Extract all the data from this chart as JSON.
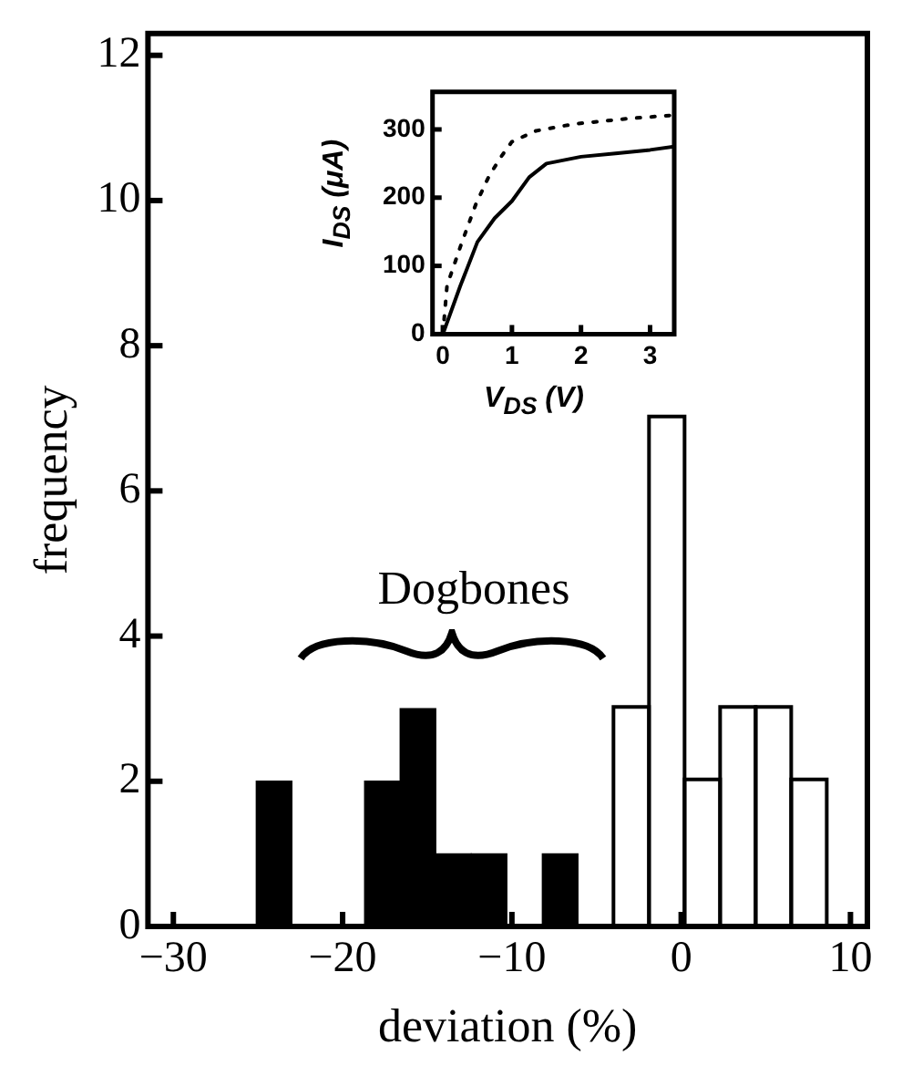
{
  "chart_data": [
    {
      "type": "histogram",
      "xlabel": "deviation (%)",
      "ylabel": "frequency",
      "bins": [
        -25.2,
        -22.9,
        -20.8,
        -18.7,
        -16.6,
        -14.5,
        -12.4,
        -10.3,
        -8.2,
        -6.1,
        -4.0,
        -1.9,
        0.2,
        2.3,
        4.4,
        6.5,
        8.6
      ],
      "series": [
        {
          "color": "#000000",
          "values": [
            2,
            0,
            0,
            2,
            3,
            1,
            1,
            0,
            1,
            0,
            0,
            0,
            0,
            0,
            0,
            0
          ]
        },
        {
          "color": "#ffffff",
          "values": [
            0,
            0,
            0,
            0,
            0,
            0,
            0,
            0,
            0,
            0,
            3,
            7,
            2,
            3,
            3,
            2
          ]
        }
      ],
      "xlim": [
        -31.5,
        11
      ],
      "xticks": [
        -30,
        -20,
        -10,
        0,
        10
      ],
      "ylim": [
        0,
        12.3
      ],
      "yticks": [
        0,
        2,
        4,
        6,
        8,
        10,
        12
      ],
      "grid": false,
      "legend": false,
      "annotations": [
        "Dogbones"
      ]
    },
    {
      "type": "line",
      "xlabel": "V$_{DS}$ (V)",
      "ylabel": "I$_{DS}$ (μA)",
      "xlim": [
        -0.15,
        3.35
      ],
      "xticks": [
        0,
        1,
        2,
        3
      ],
      "ylim": [
        0,
        355
      ],
      "yticks": [
        0,
        100,
        200,
        300
      ],
      "grid": false,
      "legend": false,
      "series": [
        {
          "color": "#000000",
          "line_style": "solid",
          "marker": "none",
          "x": [
            0,
            0.25,
            0.5,
            0.75,
            1,
            1.25,
            1.5,
            2,
            2.5,
            3,
            3.35
          ],
          "values": [
            0,
            70,
            135,
            170,
            195,
            230,
            250,
            260,
            265,
            270,
            275
          ]
        },
        {
          "color": "#000000",
          "line_style": "dotted",
          "marker": "none",
          "x": [
            0,
            0.06,
            0.27,
            0.48,
            0.67,
            0.85,
            1.0,
            1.35,
            1.9,
            2.7,
            3.35
          ],
          "values": [
            0,
            71,
            133,
            191,
            232,
            261,
            282,
            298,
            308,
            316,
            321
          ]
        }
      ]
    }
  ]
}
